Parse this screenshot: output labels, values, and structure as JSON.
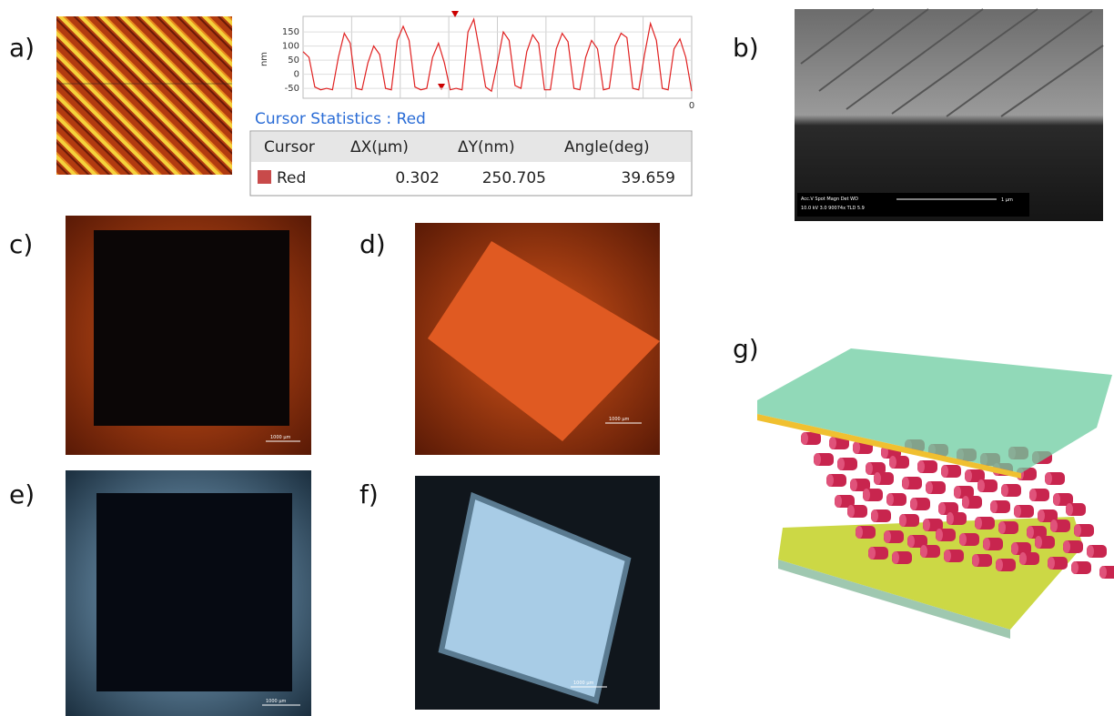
{
  "panels": {
    "a": "a)",
    "b": "b)",
    "c": "c)",
    "d": "d)",
    "e": "e)",
    "f": "f)",
    "g": "g)"
  },
  "profile": {
    "y_label": "nm",
    "yticks": [
      150,
      100,
      50,
      0,
      -50
    ],
    "ylim": [
      -85,
      205
    ],
    "x_end_label": "0",
    "values": [
      80,
      60,
      -45,
      -55,
      -50,
      -55,
      60,
      145,
      110,
      -50,
      -55,
      40,
      100,
      70,
      -50,
      -55,
      120,
      170,
      120,
      -45,
      -55,
      -50,
      60,
      110,
      40,
      -55,
      -50,
      -55,
      150,
      195,
      80,
      -45,
      -60,
      40,
      150,
      120,
      -40,
      -50,
      80,
      140,
      110,
      -55,
      -55,
      90,
      145,
      115,
      -50,
      -55,
      60,
      120,
      90,
      -55,
      -50,
      100,
      145,
      130,
      -50,
      -55,
      70,
      180,
      120,
      -50,
      -55,
      90,
      125,
      60,
      -60
    ]
  },
  "cursor_statistics": {
    "title": "Cursor Statistics : Red",
    "header": [
      "Cursor",
      "ΔX(μm)",
      "ΔY(nm)",
      "Angle(deg)"
    ],
    "row": {
      "name": "Red",
      "dx": 0.302,
      "dy": 250.705,
      "angle": 39.659
    }
  },
  "sem": {
    "info_line1": "Acc.V  Spot Magn   Det  WD",
    "info_line2": "10.0 kV 3.0  90074x  TLD 5.9",
    "scale": "1 μm"
  },
  "scale_bars": {
    "c": "1000 μm",
    "d": "1000 μm",
    "e": "1000 μm",
    "f": "1000 μm"
  }
}
